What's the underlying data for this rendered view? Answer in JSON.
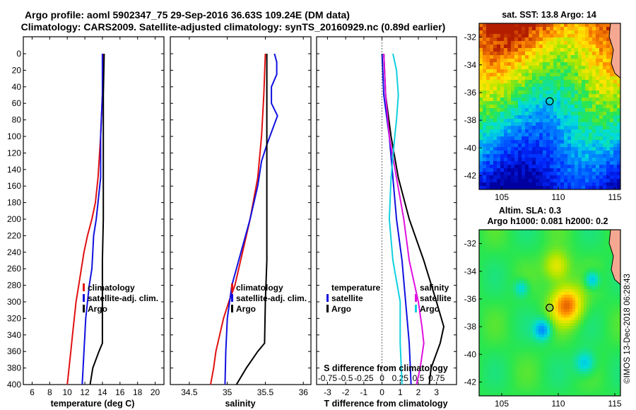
{
  "titles": {
    "line1": "Argo profile: aoml 5902347_75 29-Sep-2016 36.63S 109.24E (DM data)",
    "line2": "Climatology: CARS2009. Satellite-adjusted climatology: synTS_20160929.nc (0.89d earlier)"
  },
  "colors": {
    "climatology": "#e01010",
    "satellite": "#1010e0",
    "argo": "#000000",
    "sal_diff": "#e010e0",
    "temp_diff": "#10d0e0"
  },
  "chart_data": [
    {
      "type": "line",
      "id": "temperature",
      "xlabel": "temperature (deg C)",
      "ylabel": "",
      "xlim": [
        5,
        21
      ],
      "ylim": [
        400,
        0
      ],
      "xticks": [
        "6",
        "8",
        "10",
        "12",
        "14",
        "16",
        "18",
        "20"
      ],
      "xtick_values": [
        6,
        8,
        10,
        12,
        14,
        16,
        18,
        20
      ],
      "yticks": [
        "0",
        "20",
        "40",
        "60",
        "80",
        "100",
        "120",
        "140",
        "160",
        "180",
        "200",
        "220",
        "240",
        "260",
        "280",
        "300",
        "320",
        "340",
        "360",
        "380",
        "400"
      ],
      "ytick_values": [
        0,
        20,
        40,
        60,
        80,
        100,
        120,
        140,
        160,
        180,
        200,
        220,
        240,
        260,
        280,
        300,
        320,
        340,
        360,
        380,
        400
      ],
      "legend": [
        "climatology",
        "satellite-adj. clim.",
        "Argo"
      ],
      "series": [
        {
          "name": "climatology",
          "depth": [
            0,
            50,
            100,
            150,
            180,
            200,
            220,
            240,
            260,
            280,
            300,
            320,
            340,
            360,
            380,
            400
          ],
          "values": [
            14.1,
            14.0,
            13.8,
            13.5,
            13.2,
            12.8,
            12.3,
            11.9,
            11.6,
            11.3,
            11.0,
            10.8,
            10.6,
            10.4,
            10.2,
            10.0
          ]
        },
        {
          "name": "satellite-adj. clim.",
          "depth": [
            0,
            50,
            100,
            150,
            200,
            220,
            240,
            260,
            280,
            300,
            320,
            340,
            360,
            380,
            400
          ],
          "values": [
            14.0,
            14.0,
            13.8,
            13.8,
            13.3,
            13.0,
            12.9,
            12.8,
            12.5,
            12.3,
            12.1,
            12.0,
            11.9,
            11.8,
            11.7
          ]
        },
        {
          "name": "Argo",
          "depth": [
            0,
            50,
            100,
            150,
            200,
            250,
            300,
            350,
            360,
            380,
            400
          ],
          "values": [
            14.2,
            14.1,
            14.1,
            14.1,
            14.1,
            14.0,
            14.0,
            14.0,
            13.6,
            12.9,
            12.6
          ]
        }
      ]
    },
    {
      "type": "line",
      "id": "salinity",
      "xlabel": "salinity",
      "xlim": [
        34.25,
        36.1
      ],
      "ylim": [
        400,
        0
      ],
      "xticks": [
        "34.5",
        "35",
        "35.5",
        "36"
      ],
      "xtick_values": [
        34.5,
        35,
        35.5,
        36
      ],
      "legend": [
        "climatology",
        "satellite-adj. clim.",
        "Argo"
      ],
      "series": [
        {
          "name": "climatology",
          "depth": [
            0,
            50,
            100,
            150,
            200,
            220,
            240,
            260,
            280,
            300,
            320,
            340,
            360,
            380,
            400
          ],
          "values": [
            35.5,
            35.48,
            35.45,
            35.4,
            35.3,
            35.25,
            35.2,
            35.15,
            35.1,
            35.02,
            34.95,
            34.9,
            34.85,
            34.82,
            34.78
          ]
        },
        {
          "name": "satellite-adj. clim.",
          "depth": [
            0,
            10,
            25,
            40,
            60,
            75,
            90,
            110,
            130,
            160,
            200,
            240,
            280,
            320,
            360,
            400
          ],
          "values": [
            35.62,
            35.65,
            35.65,
            35.58,
            35.58,
            35.66,
            35.6,
            35.52,
            35.45,
            35.4,
            35.3,
            35.18,
            35.06,
            35.0,
            34.98,
            34.97
          ]
        },
        {
          "name": "Argo",
          "depth": [
            0,
            50,
            100,
            150,
            200,
            250,
            300,
            350,
            360,
            380,
            400
          ],
          "values": [
            35.52,
            35.52,
            35.52,
            35.52,
            35.52,
            35.52,
            35.5,
            35.49,
            35.4,
            35.25,
            35.12
          ]
        }
      ]
    },
    {
      "type": "line",
      "id": "difference",
      "xlabel": "T difference from climatology",
      "xlabel_top": "S difference from climatology",
      "xlim": [
        -3.6,
        4.1
      ],
      "ylim": [
        400,
        0
      ],
      "xticks": [
        "-3",
        "-2",
        "-1",
        "0",
        "1",
        "2",
        "3"
      ],
      "xtick_values": [
        -3,
        -2,
        -1,
        0,
        1,
        2,
        3
      ],
      "xticks_top": [
        "-0.75",
        "-0.5",
        "-0.25",
        "0",
        "0.25",
        "0.5",
        "0.75"
      ],
      "legend_left": [
        "temperature",
        "satellite",
        "Argo"
      ],
      "legend_right": [
        "salinity",
        "satellite",
        "Argo"
      ],
      "series": [
        {
          "name": "temperature satellite",
          "depth": [
            0,
            50,
            100,
            150,
            200,
            250,
            300,
            350,
            400
          ],
          "values": [
            0.0,
            0.1,
            0.4,
            0.6,
            0.8,
            1.1,
            1.3,
            1.5,
            1.6
          ]
        },
        {
          "name": "temperature Argo",
          "depth": [
            0,
            50,
            100,
            150,
            200,
            250,
            300,
            330,
            350,
            380,
            400
          ],
          "values": [
            0.1,
            0.2,
            0.5,
            0.9,
            1.5,
            2.3,
            3.0,
            3.4,
            3.2,
            2.7,
            2.6
          ]
        },
        {
          "name": "salinity satellite",
          "depth": [
            0,
            50,
            100,
            150,
            200,
            250,
            300,
            330,
            350,
            380,
            400
          ],
          "values": [
            0.1,
            0.2,
            0.4,
            0.8,
            1.2,
            1.5,
            2.0,
            2.2,
            2.3,
            2.1,
            1.9
          ]
        },
        {
          "name": "salinity Argo",
          "depth": [
            0,
            20,
            50,
            80,
            100,
            150,
            200,
            250,
            300,
            350,
            400
          ],
          "values": [
            0.6,
            0.8,
            0.9,
            0.8,
            0.7,
            0.5,
            0.4,
            0.6,
            1.0,
            1.0,
            1.1
          ]
        }
      ]
    },
    {
      "type": "heatmap",
      "id": "sst_map",
      "title": "sat. SST: 13.8  Argo: 14",
      "xlim": [
        103,
        115.5
      ],
      "ylim": [
        -43,
        -31
      ],
      "xticks": [
        "105",
        "110",
        "115"
      ],
      "xtick_values": [
        105,
        110,
        115
      ],
      "yticks": [
        "-32",
        "-34",
        "-36",
        "-38",
        "-40",
        "-42"
      ],
      "ytick_values": [
        -32,
        -34,
        -36,
        -38,
        -40,
        -42
      ],
      "argo_position": [
        109.24,
        -36.63
      ]
    },
    {
      "type": "heatmap",
      "id": "sla_map",
      "title": "Altim. SLA: 0.3",
      "subtitle": "Argo h1000: 0.081  h2000: 0.2",
      "xlim": [
        103,
        115.5
      ],
      "ylim": [
        -43,
        -31
      ],
      "xticks": [
        "105",
        "110",
        "115"
      ],
      "xtick_values": [
        105,
        110,
        115
      ],
      "yticks": [
        "-32",
        "-34",
        "-36",
        "-38",
        "-40",
        "-42"
      ],
      "ytick_values": [
        -32,
        -34,
        -36,
        -38,
        -40,
        -42
      ],
      "argo_position": [
        109.24,
        -36.63
      ]
    }
  ],
  "credit": "©IMOS 13-Dec-2018 06:28:43"
}
